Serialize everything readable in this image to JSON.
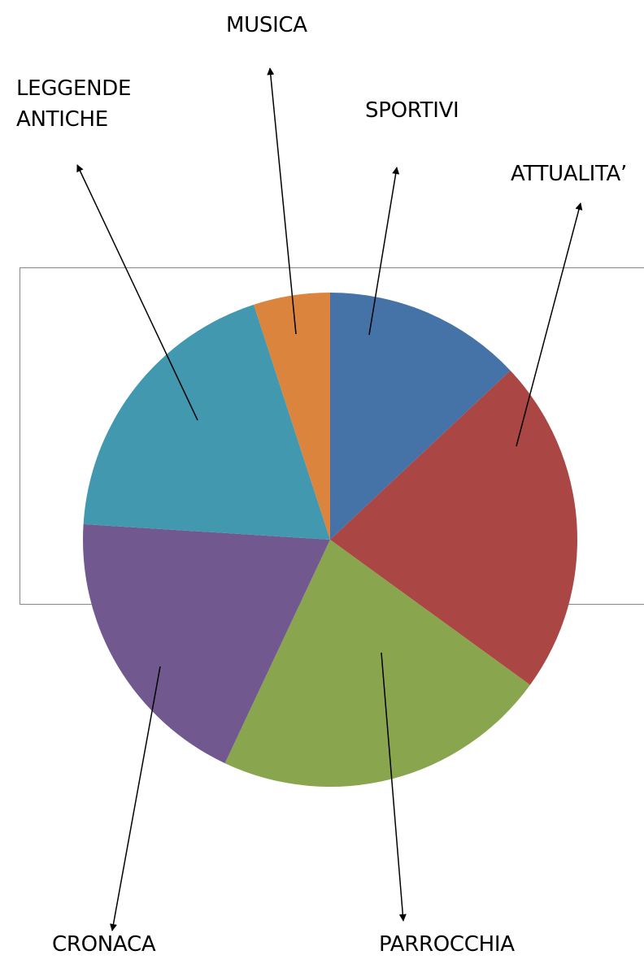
{
  "chart_data": {
    "type": "pie",
    "start": "top",
    "direction": "clockwise",
    "legend": "none",
    "slices": [
      {
        "label": "SPORTIVI",
        "label_lines": [
          "SPORTIVI"
        ],
        "value": 13,
        "color": "#4572a7"
      },
      {
        "label": "ATTUALITA’",
        "label_lines": [
          "ATTUALITA’"
        ],
        "value": 22,
        "color": "#aa4643"
      },
      {
        "label": "PARROCCHIA",
        "label_lines": [
          "PARROCCHIA"
        ],
        "value": 22,
        "color": "#89a54e"
      },
      {
        "label": "CRONACA",
        "label_lines": [
          "CRONACA"
        ],
        "value": 19,
        "color": "#71588f"
      },
      {
        "label": "LEGGENDE ANTICHE",
        "label_lines": [
          "LEGGENDE",
          "ANTICHE"
        ],
        "value": 19,
        "color": "#4198af"
      },
      {
        "label": "MUSICA",
        "label_lines": [
          "MUSICA"
        ],
        "value": 5,
        "color": "#db843d"
      }
    ]
  }
}
